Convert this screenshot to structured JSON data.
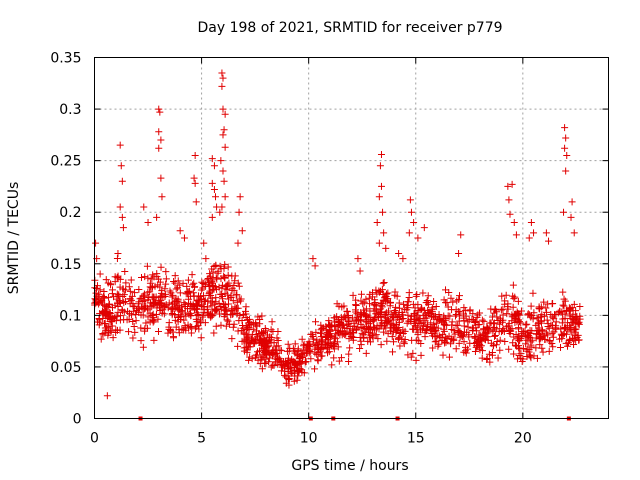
{
  "chart_data": {
    "type": "scatter",
    "title": "Day 198 of 2021, SRMTID for receiver p779",
    "xlabel": "GPS time / hours",
    "ylabel": "SRMTID / TECUs",
    "xlim": [
      0,
      24
    ],
    "ylim": [
      0,
      0.35
    ],
    "xticks": [
      0,
      5,
      10,
      15,
      20
    ],
    "xtick_labels": [
      "0",
      "5",
      "10",
      "15",
      "20"
    ],
    "yticks": [
      0,
      0.05,
      0.1,
      0.15,
      0.2,
      0.25,
      0.3,
      0.35
    ],
    "ytick_labels": [
      "0",
      "0.05",
      "0.1",
      "0.15",
      "0.2",
      "0.25",
      "0.3",
      "0.35"
    ],
    "grid": true,
    "marker": "+",
    "point_color": "#e00000",
    "data_span_hours": [
      0,
      22.7
    ],
    "envelope": {
      "x": [
        0,
        0.5,
        1,
        1.5,
        2,
        2.5,
        3,
        3.5,
        4,
        4.5,
        5,
        5.5,
        6,
        6.5,
        7,
        7.5,
        8,
        8.5,
        9,
        9.5,
        10,
        10.5,
        11,
        11.5,
        12,
        12.5,
        13,
        13.5,
        14,
        14.5,
        15,
        15.5,
        16,
        16.5,
        17,
        17.5,
        18,
        18.5,
        19,
        19.5,
        20,
        20.5,
        21,
        21.5,
        22,
        22.5,
        22.7
      ],
      "low": [
        0.09,
        0.06,
        0.05,
        0.06,
        0.05,
        0.06,
        0.07,
        0.06,
        0.06,
        0.06,
        0.07,
        0.07,
        0.07,
        0.06,
        0.05,
        0.04,
        0.04,
        0.035,
        0.02,
        0.03,
        0.04,
        0.045,
        0.045,
        0.05,
        0.05,
        0.05,
        0.06,
        0.06,
        0.06,
        0.05,
        0.05,
        0.05,
        0.05,
        0.05,
        0.05,
        0.05,
        0.045,
        0.04,
        0.05,
        0.05,
        0.04,
        0.04,
        0.05,
        0.06,
        0.06,
        0.06,
        0.06
      ],
      "high": [
        0.15,
        0.14,
        0.17,
        0.16,
        0.14,
        0.16,
        0.17,
        0.15,
        0.15,
        0.16,
        0.15,
        0.18,
        0.16,
        0.17,
        0.12,
        0.11,
        0.1,
        0.1,
        0.08,
        0.08,
        0.1,
        0.1,
        0.11,
        0.12,
        0.13,
        0.13,
        0.14,
        0.15,
        0.13,
        0.13,
        0.14,
        0.14,
        0.13,
        0.13,
        0.14,
        0.13,
        0.12,
        0.12,
        0.14,
        0.14,
        0.12,
        0.13,
        0.13,
        0.13,
        0.13,
        0.12,
        0.12
      ]
    },
    "points_per_hour": 80,
    "spikes": [
      {
        "x": 0.05,
        "y": 0.17
      },
      {
        "x": 0.1,
        "y": 0.155
      },
      {
        "x": 0.6,
        "y": 0.022
      },
      {
        "x": 1.2,
        "y": 0.265
      },
      {
        "x": 1.25,
        "y": 0.245
      },
      {
        "x": 1.3,
        "y": 0.23
      },
      {
        "x": 1.2,
        "y": 0.205
      },
      {
        "x": 1.3,
        "y": 0.195
      },
      {
        "x": 1.35,
        "y": 0.185
      },
      {
        "x": 2.3,
        "y": 0.205
      },
      {
        "x": 2.5,
        "y": 0.19
      },
      {
        "x": 3.0,
        "y": 0.3
      },
      {
        "x": 3.05,
        "y": 0.297
      },
      {
        "x": 3.0,
        "y": 0.278
      },
      {
        "x": 3.1,
        "y": 0.27
      },
      {
        "x": 3.0,
        "y": 0.262
      },
      {
        "x": 3.1,
        "y": 0.233
      },
      {
        "x": 3.15,
        "y": 0.215
      },
      {
        "x": 2.9,
        "y": 0.195
      },
      {
        "x": 4.0,
        "y": 0.182
      },
      {
        "x": 4.2,
        "y": 0.175
      },
      {
        "x": 4.7,
        "y": 0.255
      },
      {
        "x": 4.65,
        "y": 0.233
      },
      {
        "x": 4.7,
        "y": 0.228
      },
      {
        "x": 4.75,
        "y": 0.21
      },
      {
        "x": 5.2,
        "y": 0.155
      },
      {
        "x": 5.1,
        "y": 0.17
      },
      {
        "x": 5.5,
        "y": 0.252
      },
      {
        "x": 5.6,
        "y": 0.245
      },
      {
        "x": 5.5,
        "y": 0.228
      },
      {
        "x": 5.6,
        "y": 0.222
      },
      {
        "x": 5.65,
        "y": 0.215
      },
      {
        "x": 5.7,
        "y": 0.205
      },
      {
        "x": 5.5,
        "y": 0.195
      },
      {
        "x": 5.95,
        "y": 0.335
      },
      {
        "x": 6.0,
        "y": 0.33
      },
      {
        "x": 5.95,
        "y": 0.322
      },
      {
        "x": 6.0,
        "y": 0.3
      },
      {
        "x": 6.1,
        "y": 0.295
      },
      {
        "x": 6.05,
        "y": 0.28
      },
      {
        "x": 6.0,
        "y": 0.275
      },
      {
        "x": 6.1,
        "y": 0.263
      },
      {
        "x": 5.9,
        "y": 0.25
      },
      {
        "x": 6.0,
        "y": 0.24
      },
      {
        "x": 6.05,
        "y": 0.23
      },
      {
        "x": 6.1,
        "y": 0.215
      },
      {
        "x": 5.95,
        "y": 0.205
      },
      {
        "x": 5.85,
        "y": 0.2
      },
      {
        "x": 6.8,
        "y": 0.215
      },
      {
        "x": 6.75,
        "y": 0.2
      },
      {
        "x": 6.9,
        "y": 0.182
      },
      {
        "x": 6.7,
        "y": 0.17
      },
      {
        "x": 10.2,
        "y": 0.155
      },
      {
        "x": 10.3,
        "y": 0.148
      },
      {
        "x": 12.3,
        "y": 0.155
      },
      {
        "x": 12.4,
        "y": 0.143
      },
      {
        "x": 13.4,
        "y": 0.256
      },
      {
        "x": 13.35,
        "y": 0.245
      },
      {
        "x": 13.4,
        "y": 0.225
      },
      {
        "x": 13.3,
        "y": 0.215
      },
      {
        "x": 13.45,
        "y": 0.2
      },
      {
        "x": 13.2,
        "y": 0.19
      },
      {
        "x": 13.5,
        "y": 0.18
      },
      {
        "x": 13.3,
        "y": 0.17
      },
      {
        "x": 13.6,
        "y": 0.165
      },
      {
        "x": 14.2,
        "y": 0.16
      },
      {
        "x": 14.4,
        "y": 0.155
      },
      {
        "x": 14.75,
        "y": 0.212
      },
      {
        "x": 14.8,
        "y": 0.2
      },
      {
        "x": 14.9,
        "y": 0.19
      },
      {
        "x": 14.7,
        "y": 0.18
      },
      {
        "x": 15.1,
        "y": 0.175
      },
      {
        "x": 15.4,
        "y": 0.185
      },
      {
        "x": 17.1,
        "y": 0.178
      },
      {
        "x": 17.0,
        "y": 0.16
      },
      {
        "x": 19.3,
        "y": 0.225
      },
      {
        "x": 19.5,
        "y": 0.227
      },
      {
        "x": 19.35,
        "y": 0.212
      },
      {
        "x": 19.4,
        "y": 0.198
      },
      {
        "x": 19.6,
        "y": 0.19
      },
      {
        "x": 19.7,
        "y": 0.178
      },
      {
        "x": 20.4,
        "y": 0.19
      },
      {
        "x": 20.5,
        "y": 0.18
      },
      {
        "x": 20.3,
        "y": 0.175
      },
      {
        "x": 21.1,
        "y": 0.18
      },
      {
        "x": 21.2,
        "y": 0.172
      },
      {
        "x": 21.95,
        "y": 0.282
      },
      {
        "x": 22.0,
        "y": 0.272
      },
      {
        "x": 21.95,
        "y": 0.262
      },
      {
        "x": 22.05,
        "y": 0.255
      },
      {
        "x": 22.0,
        "y": 0.24
      },
      {
        "x": 21.9,
        "y": 0.2
      },
      {
        "x": 22.3,
        "y": 0.21
      },
      {
        "x": 22.25,
        "y": 0.195
      },
      {
        "x": 22.4,
        "y": 0.18
      }
    ],
    "gaps": [
      {
        "x": 2.15
      },
      {
        "x": 10.1
      },
      {
        "x": 11.15
      },
      {
        "x": 14.15
      },
      {
        "x": 22.15
      }
    ]
  }
}
